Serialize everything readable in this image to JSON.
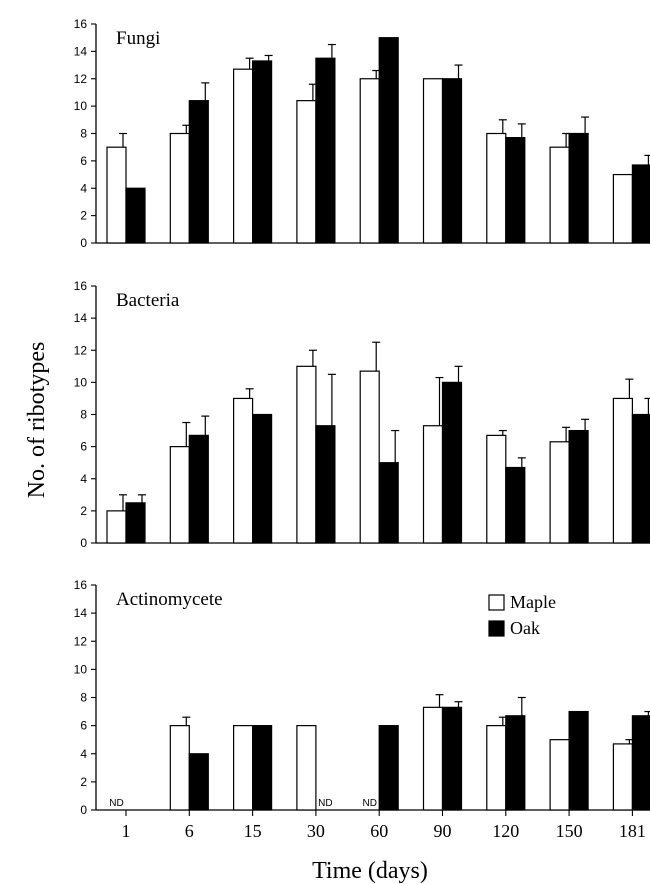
{
  "chart_data": {
    "type": "bar",
    "ylabel": "No. of ribotypes",
    "xlabel": "Time (days)",
    "categories": [
      "1",
      "6",
      "15",
      "30",
      "60",
      "90",
      "120",
      "150",
      "181"
    ],
    "ylim": [
      0,
      16
    ],
    "yticks": [
      "0",
      "2",
      "4",
      "6",
      "8",
      "10",
      "12",
      "14",
      "16"
    ],
    "grid": false,
    "legend": {
      "position": "top-right of bottom panel",
      "entries": [
        {
          "label": "Maple",
          "color": "#ffffff"
        },
        {
          "label": "Oak",
          "color": "#000000"
        }
      ]
    },
    "panels": [
      {
        "title": "Fungi",
        "series": [
          {
            "name": "Maple",
            "color": "#ffffff",
            "values": [
              7,
              8,
              12.7,
              10.4,
              12,
              12,
              8,
              7,
              5
            ],
            "errors": [
              1,
              0.6,
              0.8,
              1.2,
              0.6,
              0,
              1,
              1,
              0
            ]
          },
          {
            "name": "Oak",
            "color": "#000000",
            "values": [
              4,
              10.4,
              13.3,
              13.5,
              15,
              12,
              7.7,
              8,
              5.7
            ],
            "errors": [
              0,
              1.3,
              0.4,
              1,
              0,
              1,
              1,
              1.2,
              0.7
            ]
          }
        ]
      },
      {
        "title": "Bacteria",
        "series": [
          {
            "name": "Maple",
            "color": "#ffffff",
            "values": [
              2,
              6,
              9,
              11,
              10.7,
              7.3,
              6.7,
              6.3,
              9
            ],
            "errors": [
              1,
              1.5,
              0.6,
              1,
              1.8,
              3,
              0.3,
              0.9,
              1.2
            ]
          },
          {
            "name": "Oak",
            "color": "#000000",
            "values": [
              2.5,
              6.7,
              8,
              7.3,
              5,
              10,
              4.7,
              7,
              8
            ],
            "errors": [
              0.5,
              1.2,
              0,
              3.2,
              2,
              1,
              0.6,
              0.7,
              1
            ]
          }
        ]
      },
      {
        "title": "Actinomycete",
        "series": [
          {
            "name": "Maple",
            "color": "#ffffff",
            "values": [
              null,
              6,
              6,
              6,
              null,
              7.3,
              6,
              5,
              4.7
            ],
            "errors": [
              0,
              0.6,
              0,
              0,
              0,
              0.9,
              0.6,
              0,
              0.3
            ]
          },
          {
            "name": "Oak",
            "color": "#000000",
            "values": [
              null,
              4,
              6,
              null,
              6,
              7.3,
              6.7,
              7,
              6.7
            ],
            "errors": [
              0,
              0,
              0,
              0,
              0,
              0.4,
              1.3,
              0,
              0.3
            ]
          }
        ],
        "annotations": [
          {
            "category": "1",
            "text": "ND"
          },
          {
            "category": "30",
            "text": "ND"
          },
          {
            "category": "60",
            "text": "ND"
          }
        ]
      }
    ]
  }
}
